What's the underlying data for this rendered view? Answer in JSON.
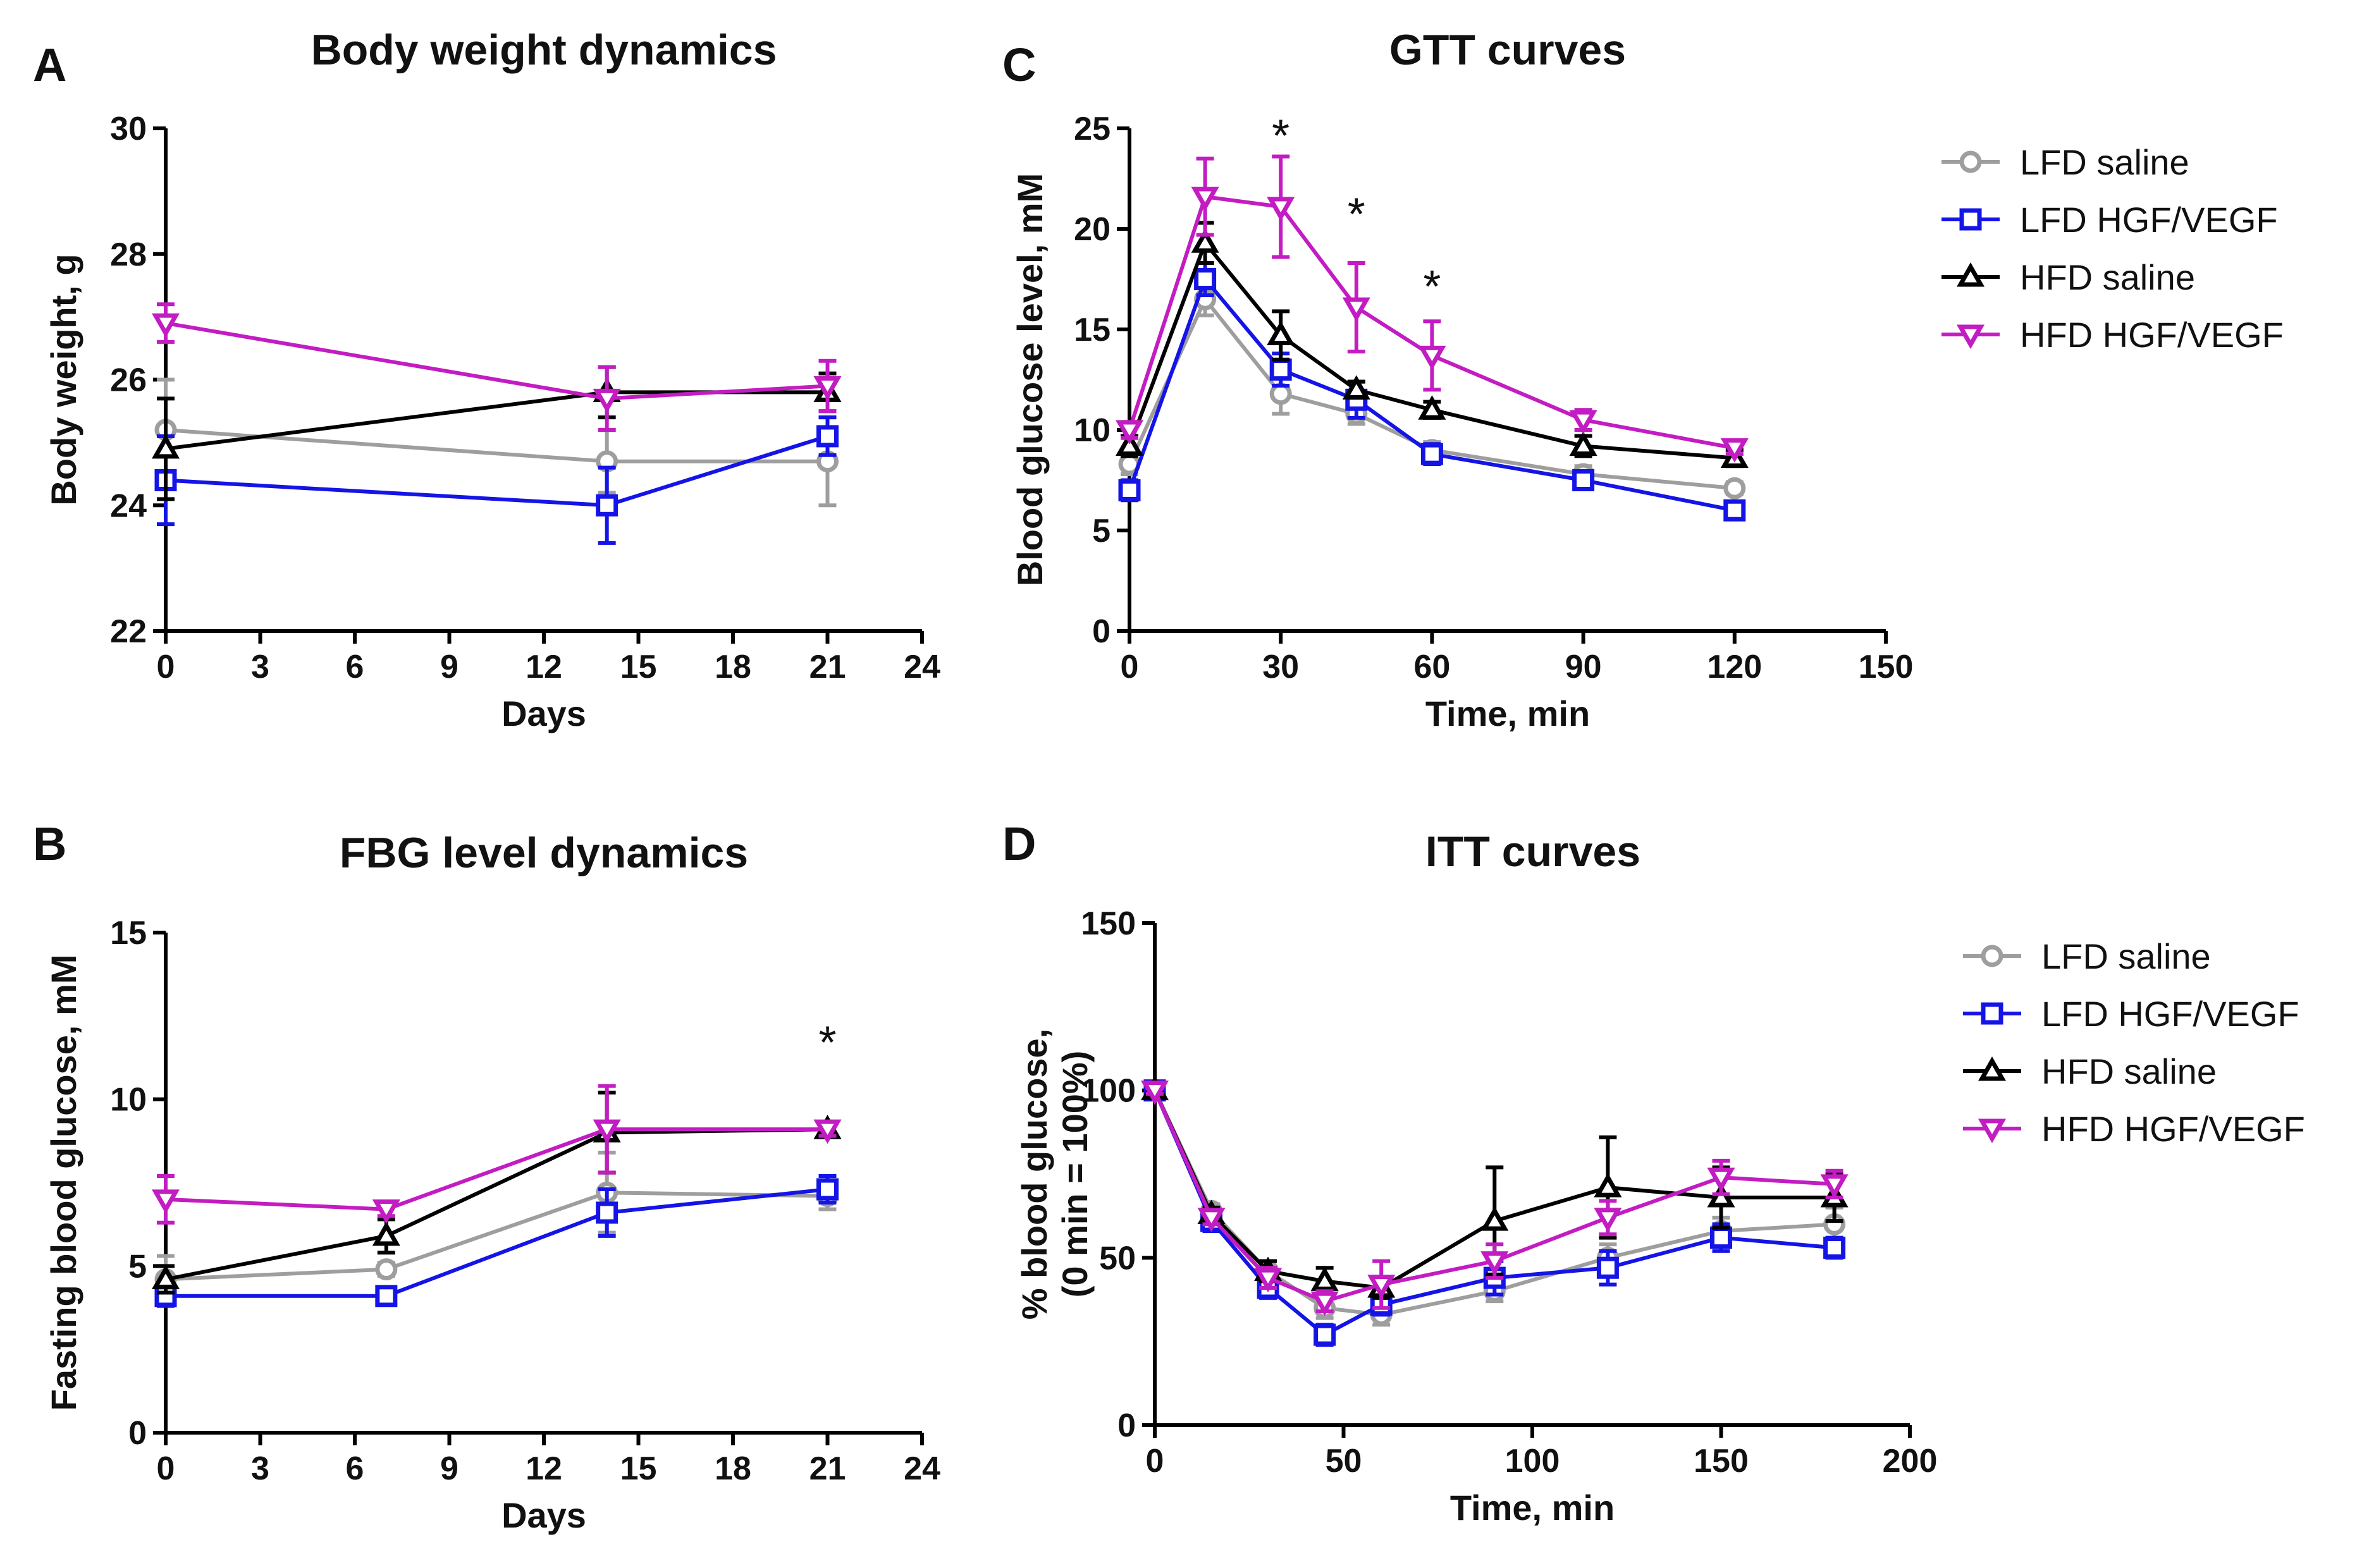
{
  "figure": {
    "colors": {
      "LFD saline": "#9e9e9e",
      "LFD HGF/VEGF": "#1414e6",
      "HFD saline": "#000000",
      "HFD HGF/VEGF": "#c21cc2"
    },
    "markers": {
      "LFD saline": "circle",
      "LFD HGF/VEGF": "square",
      "HFD saline": "triangle-up",
      "HFD HGF/VEGF": "triangle-down"
    }
  },
  "chart_data": [
    {
      "panel": "A",
      "type": "line",
      "title": "Body weight dynamics",
      "xlabel": "Days",
      "ylabel": "Body weight, g",
      "xlim": [
        0,
        24
      ],
      "ylim": [
        22,
        30
      ],
      "xticks": [
        0,
        3,
        6,
        9,
        12,
        15,
        18,
        21,
        24
      ],
      "yticks": [
        22,
        24,
        26,
        28,
        30
      ],
      "legend": null,
      "annotations": [],
      "series": [
        {
          "name": "LFD saline",
          "x": [
            0,
            14,
            21
          ],
          "values": [
            25.2,
            24.7,
            24.7
          ],
          "err": [
            0.8,
            0.5,
            0.7
          ]
        },
        {
          "name": "LFD HGF/VEGF",
          "x": [
            0,
            14,
            21
          ],
          "values": [
            24.4,
            24.0,
            25.1
          ],
          "err": [
            0.7,
            0.6,
            0.3
          ]
        },
        {
          "name": "HFD saline",
          "x": [
            0,
            14,
            21
          ],
          "values": [
            24.9,
            25.8,
            25.8
          ],
          "err": [
            0.8,
            0.4,
            0.3
          ]
        },
        {
          "name": "HFD HGF/VEGF",
          "x": [
            0,
            14,
            21
          ],
          "values": [
            26.9,
            25.7,
            25.9
          ],
          "err": [
            0.3,
            0.5,
            0.4
          ]
        }
      ]
    },
    {
      "panel": "B",
      "type": "line",
      "title": "FBG level dynamics",
      "xlabel": "Days",
      "ylabel": "Fasting blood glucose, mM",
      "xlim": [
        0,
        24
      ],
      "ylim": [
        0,
        15
      ],
      "xticks": [
        0,
        3,
        6,
        9,
        12,
        15,
        18,
        21,
        24
      ],
      "yticks": [
        0,
        5,
        10,
        15
      ],
      "legend": null,
      "annotations": [
        {
          "text": "*",
          "x": 21,
          "y": 11.8
        }
      ],
      "series": [
        {
          "name": "LFD saline",
          "x": [
            0,
            7,
            14,
            21
          ],
          "values": [
            4.6,
            4.9,
            7.2,
            7.1
          ],
          "err": [
            0.7,
            0.2,
            1.2,
            0.4
          ]
        },
        {
          "name": "LFD HGF/VEGF",
          "x": [
            0,
            7,
            14,
            21
          ],
          "values": [
            4.1,
            4.1,
            6.6,
            7.3
          ],
          "err": [
            0.3,
            0.2,
            0.7,
            0.4
          ]
        },
        {
          "name": "HFD saline",
          "x": [
            0,
            7,
            14,
            21
          ],
          "values": [
            4.6,
            5.9,
            9.0,
            9.1
          ],
          "err": [
            0.4,
            0.5,
            1.2,
            0.2
          ]
        },
        {
          "name": "HFD HGF/VEGF",
          "x": [
            0,
            7,
            14,
            21
          ],
          "values": [
            7.0,
            6.7,
            9.1,
            9.1
          ],
          "err": [
            0.7,
            0.2,
            1.3,
            0.2
          ]
        }
      ]
    },
    {
      "panel": "C",
      "type": "line",
      "title": "GTT curves",
      "xlabel": "Time, min",
      "ylabel": "Blood glucose level, mM",
      "xlim": [
        0,
        150
      ],
      "ylim": [
        0,
        25
      ],
      "xticks": [
        0,
        30,
        60,
        90,
        120,
        150
      ],
      "yticks": [
        0,
        5,
        10,
        15,
        20,
        25
      ],
      "legend": "right",
      "annotations": [
        {
          "text": "*",
          "x": 30,
          "y": 24.8
        },
        {
          "text": "*",
          "x": 45,
          "y": 20.9
        },
        {
          "text": "*",
          "x": 60,
          "y": 17.3
        }
      ],
      "series": [
        {
          "name": "LFD saline",
          "x": [
            0,
            15,
            30,
            45,
            60,
            90,
            120
          ],
          "values": [
            8.3,
            16.5,
            11.8,
            10.8,
            9.0,
            7.8,
            7.1
          ],
          "err": [
            0.5,
            0.8,
            1.0,
            0.5,
            0.4,
            0.4,
            0.3
          ]
        },
        {
          "name": "LFD HGF/VEGF",
          "x": [
            0,
            15,
            30,
            45,
            60,
            90,
            120
          ],
          "values": [
            7.0,
            17.5,
            13.0,
            11.5,
            8.8,
            7.5,
            6.0
          ],
          "err": [
            0.5,
            0.8,
            0.8,
            0.9,
            0.5,
            0.4,
            0.3
          ]
        },
        {
          "name": "HFD saline",
          "x": [
            0,
            15,
            30,
            45,
            60,
            90,
            120
          ],
          "values": [
            9.2,
            19.3,
            14.7,
            12.0,
            11.0,
            9.2,
            8.6
          ],
          "err": [
            0.5,
            1.0,
            1.2,
            0.4,
            0.4,
            0.5,
            0.4
          ]
        },
        {
          "name": "HFD HGF/VEGF",
          "x": [
            0,
            15,
            30,
            45,
            60,
            90,
            120
          ],
          "values": [
            10.0,
            21.6,
            21.1,
            16.1,
            13.7,
            10.5,
            9.1
          ],
          "err": [
            0.4,
            1.9,
            2.5,
            2.2,
            1.7,
            0.5,
            0.3
          ]
        }
      ]
    },
    {
      "panel": "D",
      "type": "line",
      "title": "ITT curves",
      "xlabel": "Time, min",
      "ylabel": "% blood glucose, (0 min = 100%)",
      "xlim": [
        0,
        200
      ],
      "ylim": [
        0,
        150
      ],
      "xticks": [
        0,
        50,
        100,
        150,
        200
      ],
      "yticks": [
        0,
        50,
        100,
        150
      ],
      "legend": "right",
      "annotations": [],
      "series": [
        {
          "name": "LFD saline",
          "x": [
            0,
            15,
            30,
            45,
            60,
            90,
            120,
            150,
            180
          ],
          "values": [
            100,
            64,
            46,
            35,
            33,
            40,
            50,
            58,
            60
          ],
          "err": [
            1,
            2,
            3,
            3,
            3,
            3,
            4,
            4,
            5
          ]
        },
        {
          "name": "LFD HGF/VEGF",
          "x": [
            0,
            15,
            30,
            45,
            60,
            90,
            120,
            150,
            180
          ],
          "values": [
            100,
            61,
            41,
            27,
            36,
            44,
            47,
            56,
            53
          ],
          "err": [
            1,
            3,
            3,
            3,
            3,
            5,
            5,
            4,
            3
          ]
        },
        {
          "name": "HFD saline",
          "x": [
            0,
            15,
            30,
            45,
            60,
            90,
            120,
            150,
            180
          ],
          "values": [
            100,
            63,
            46,
            43,
            41,
            61,
            71,
            68,
            68
          ],
          "err": [
            1,
            2,
            3,
            4,
            3,
            16,
            15,
            9,
            7
          ]
        },
        {
          "name": "HFD HGF/VEGF",
          "x": [
            0,
            15,
            30,
            45,
            60,
            90,
            120,
            150,
            180
          ],
          "values": [
            100,
            62,
            44,
            37,
            42,
            49,
            62,
            74,
            72
          ],
          "err": [
            1,
            2,
            3,
            3,
            7,
            5,
            5,
            5,
            4
          ]
        }
      ]
    }
  ]
}
